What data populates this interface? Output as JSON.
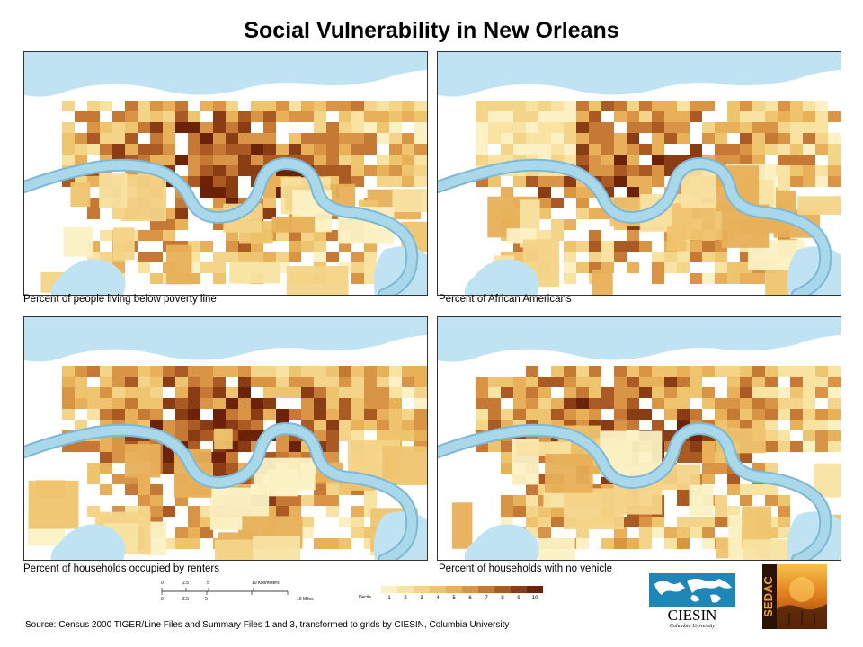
{
  "title": "Social Vulnerability in New Orleans",
  "maps": [
    {
      "caption": "Percent of people living below poverty line",
      "variant": 1
    },
    {
      "caption": "Percent of African Americans",
      "variant": 2
    },
    {
      "caption": "Percent of households occupied by renters",
      "variant": 3
    },
    {
      "caption": "Percent of households with no vehicle",
      "variant": 4
    }
  ],
  "scale": {
    "km_ticks": [
      "0",
      "2.5",
      "5",
      "10 Kilometers"
    ],
    "mile_ticks": [
      "0",
      "2.5",
      "5",
      "10 Miles"
    ]
  },
  "legend": {
    "title": "Decile",
    "labels": [
      "1",
      "2",
      "3",
      "4",
      "5",
      "6",
      "7",
      "8",
      "9",
      "10"
    ],
    "colors": [
      "#fbf1c4",
      "#f8e3a2",
      "#f4d488",
      "#efc46e",
      "#e8b058",
      "#d99545",
      "#c67934",
      "#ac5a24",
      "#8a3c15",
      "#6b2208"
    ]
  },
  "source": "Source: Census 2000 TIGER/Line Files and Summary Files 1 and 3, transformed to grids by CIESIN, Columbia University",
  "logos": {
    "ciesin_text": "CIESIN",
    "ciesin_sub": "Columbia University",
    "sedac_text": "SEDAC"
  },
  "colors": {
    "water": "#bfe3f2",
    "river": "#a9d8ea",
    "river_edge": "#7fb8d4"
  }
}
